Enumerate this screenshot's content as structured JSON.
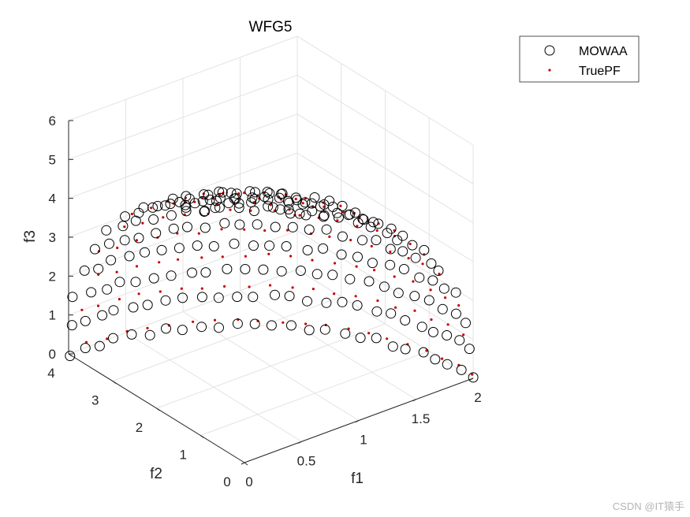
{
  "chart_data": {
    "type": "scatter3d",
    "title": "WFG5",
    "xlabel": "f1",
    "ylabel": "f2",
    "zlabel": "f3",
    "xlim": [
      0,
      2
    ],
    "ylim": [
      0,
      4
    ],
    "zlim": [
      0,
      6
    ],
    "xticks": [
      "0",
      "0.5",
      "1",
      "1.5",
      "2"
    ],
    "yticks": [
      "0",
      "1",
      "2",
      "3",
      "4"
    ],
    "zticks": [
      "0",
      "1",
      "2",
      "3",
      "4",
      "5",
      "6"
    ],
    "grid": true,
    "legend_position": "top-right",
    "view": "3d-default",
    "series": [
      {
        "name": "MOWAA",
        "marker": "open-circle",
        "color": "#000000",
        "shape": "ellipsoid octant f1^2/4 + f2^2/16 + f3^2/36 = 1, approx. 210 points"
      },
      {
        "name": "TruePF",
        "marker": "dot",
        "color": "#cc0000",
        "shape": "ellipsoid octant f1^2/4 + f2^2/16 + f3^2/36 = 1, approx. 120 points"
      }
    ]
  },
  "watermark": "CSDN @IT猿手"
}
